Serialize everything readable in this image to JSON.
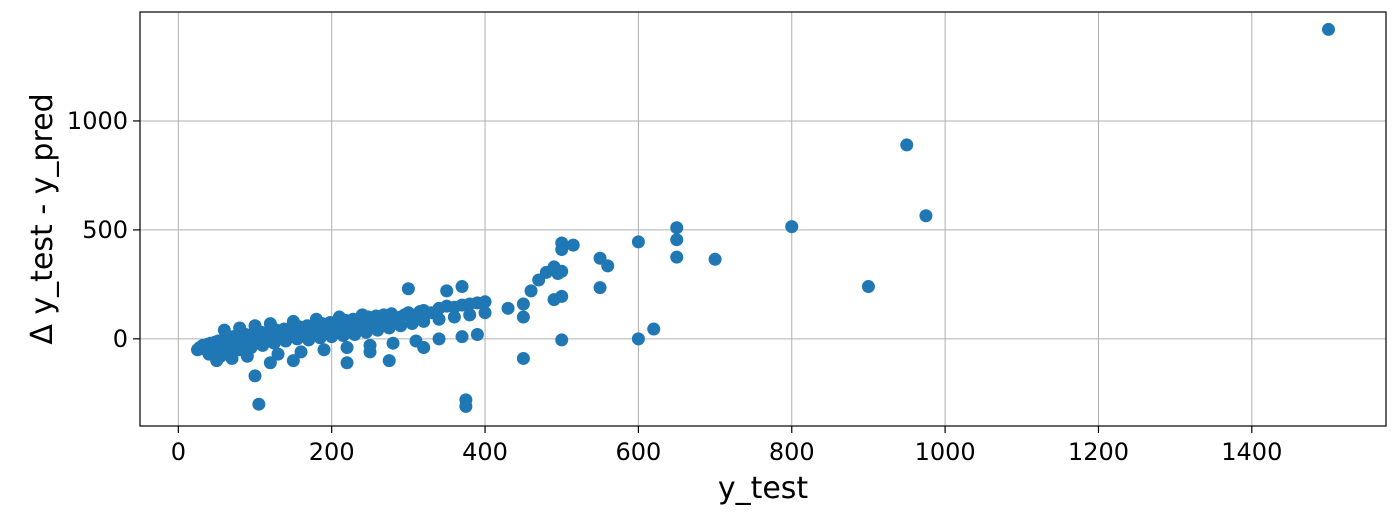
{
  "chart_data": {
    "type": "scatter",
    "title": "",
    "xlabel": "y_test",
    "ylabel": "Δ y_test - y_pred",
    "xlim": [
      -50,
      1575
    ],
    "ylim": [
      -400,
      1500
    ],
    "xticks": [
      0,
      200,
      400,
      600,
      800,
      1000,
      1200,
      1400
    ],
    "yticks": [
      0,
      500,
      1000
    ],
    "grid": true,
    "color": "#1f77b4",
    "series": [
      {
        "x": [
          25,
          28,
          30,
          32,
          35,
          38,
          40,
          42,
          45,
          48,
          50,
          52,
          55,
          58,
          60,
          62,
          65,
          68,
          70,
          72,
          75,
          78,
          80,
          82,
          85,
          88,
          90,
          92,
          95,
          98,
          100,
          102,
          105,
          108,
          110,
          112,
          115,
          118,
          120,
          122,
          125,
          128,
          130,
          132,
          135,
          138,
          140,
          142,
          145,
          148,
          150,
          152,
          155,
          158,
          160,
          162,
          165,
          168,
          170,
          172,
          175,
          178,
          180,
          182,
          185,
          188,
          190,
          192,
          195,
          198,
          200,
          202,
          205,
          208,
          210,
          212,
          215,
          218,
          220,
          222,
          225,
          228,
          230,
          232,
          235,
          238,
          240,
          242,
          245,
          248,
          250,
          252,
          255,
          258,
          260,
          262,
          265,
          268,
          270,
          272,
          275,
          278,
          280,
          285,
          290,
          295,
          300,
          305,
          310,
          315,
          320,
          330,
          340,
          350,
          360,
          370,
          380,
          390,
          400,
          40,
          55,
          65,
          80,
          95,
          110,
          125,
          140,
          155,
          170,
          185,
          200,
          215,
          230,
          245,
          260,
          275,
          290,
          305,
          320,
          340,
          360,
          380,
          400,
          60,
          80,
          100,
          120,
          150,
          180,
          210,
          240,
          50,
          70,
          90,
          130,
          160,
          190,
          220,
          250,
          280,
          310,
          340,
          370,
          390,
          105,
          100,
          120,
          150,
          220,
          250,
          275,
          300,
          320,
          350,
          370,
          375,
          375,
          430,
          450,
          450,
          450,
          460,
          470,
          480,
          490,
          490,
          495,
          500,
          500,
          500,
          500,
          500,
          515,
          550,
          550,
          560,
          600,
          600,
          620,
          650,
          650,
          650,
          700,
          800,
          900,
          950,
          975,
          1500
        ],
        "y": [
          -50,
          -40,
          -45,
          -30,
          -35,
          -25,
          -40,
          -20,
          -30,
          -15,
          -35,
          -10,
          -25,
          -5,
          -30,
          0,
          -20,
          5,
          -25,
          10,
          -15,
          15,
          -20,
          5,
          -10,
          20,
          -15,
          10,
          -5,
          25,
          -10,
          20,
          0,
          30,
          -5,
          25,
          5,
          35,
          0,
          30,
          10,
          40,
          5,
          35,
          15,
          45,
          10,
          40,
          20,
          50,
          15,
          45,
          25,
          55,
          20,
          50,
          30,
          60,
          25,
          55,
          35,
          65,
          30,
          60,
          40,
          70,
          35,
          65,
          45,
          75,
          40,
          70,
          50,
          80,
          45,
          75,
          55,
          85,
          50,
          80,
          60,
          90,
          55,
          85,
          65,
          95,
          60,
          90,
          70,
          100,
          65,
          95,
          75,
          105,
          70,
          100,
          80,
          110,
          75,
          105,
          85,
          115,
          80,
          95,
          100,
          110,
          120,
          100,
          110,
          125,
          130,
          120,
          140,
          150,
          145,
          155,
          160,
          165,
          170,
          -70,
          -80,
          -60,
          -50,
          -40,
          -30,
          -20,
          -10,
          0,
          -5,
          5,
          10,
          15,
          20,
          30,
          40,
          50,
          60,
          70,
          80,
          90,
          100,
          110,
          120,
          40,
          50,
          60,
          70,
          80,
          90,
          100,
          110,
          -100,
          -90,
          -80,
          -70,
          -60,
          -50,
          -40,
          -30,
          -20,
          -10,
          0,
          10,
          20,
          -300,
          -170,
          -110,
          -100,
          -110,
          -60,
          -100,
          230,
          -40,
          220,
          240,
          -280,
          -310,
          140,
          160,
          100,
          -90,
          220,
          270,
          305,
          180,
          330,
          300,
          440,
          410,
          310,
          195,
          -5,
          430,
          370,
          235,
          335,
          445,
          0,
          45,
          510,
          455,
          375,
          365,
          515,
          240,
          890,
          565,
          1420
        ]
      }
    ]
  }
}
